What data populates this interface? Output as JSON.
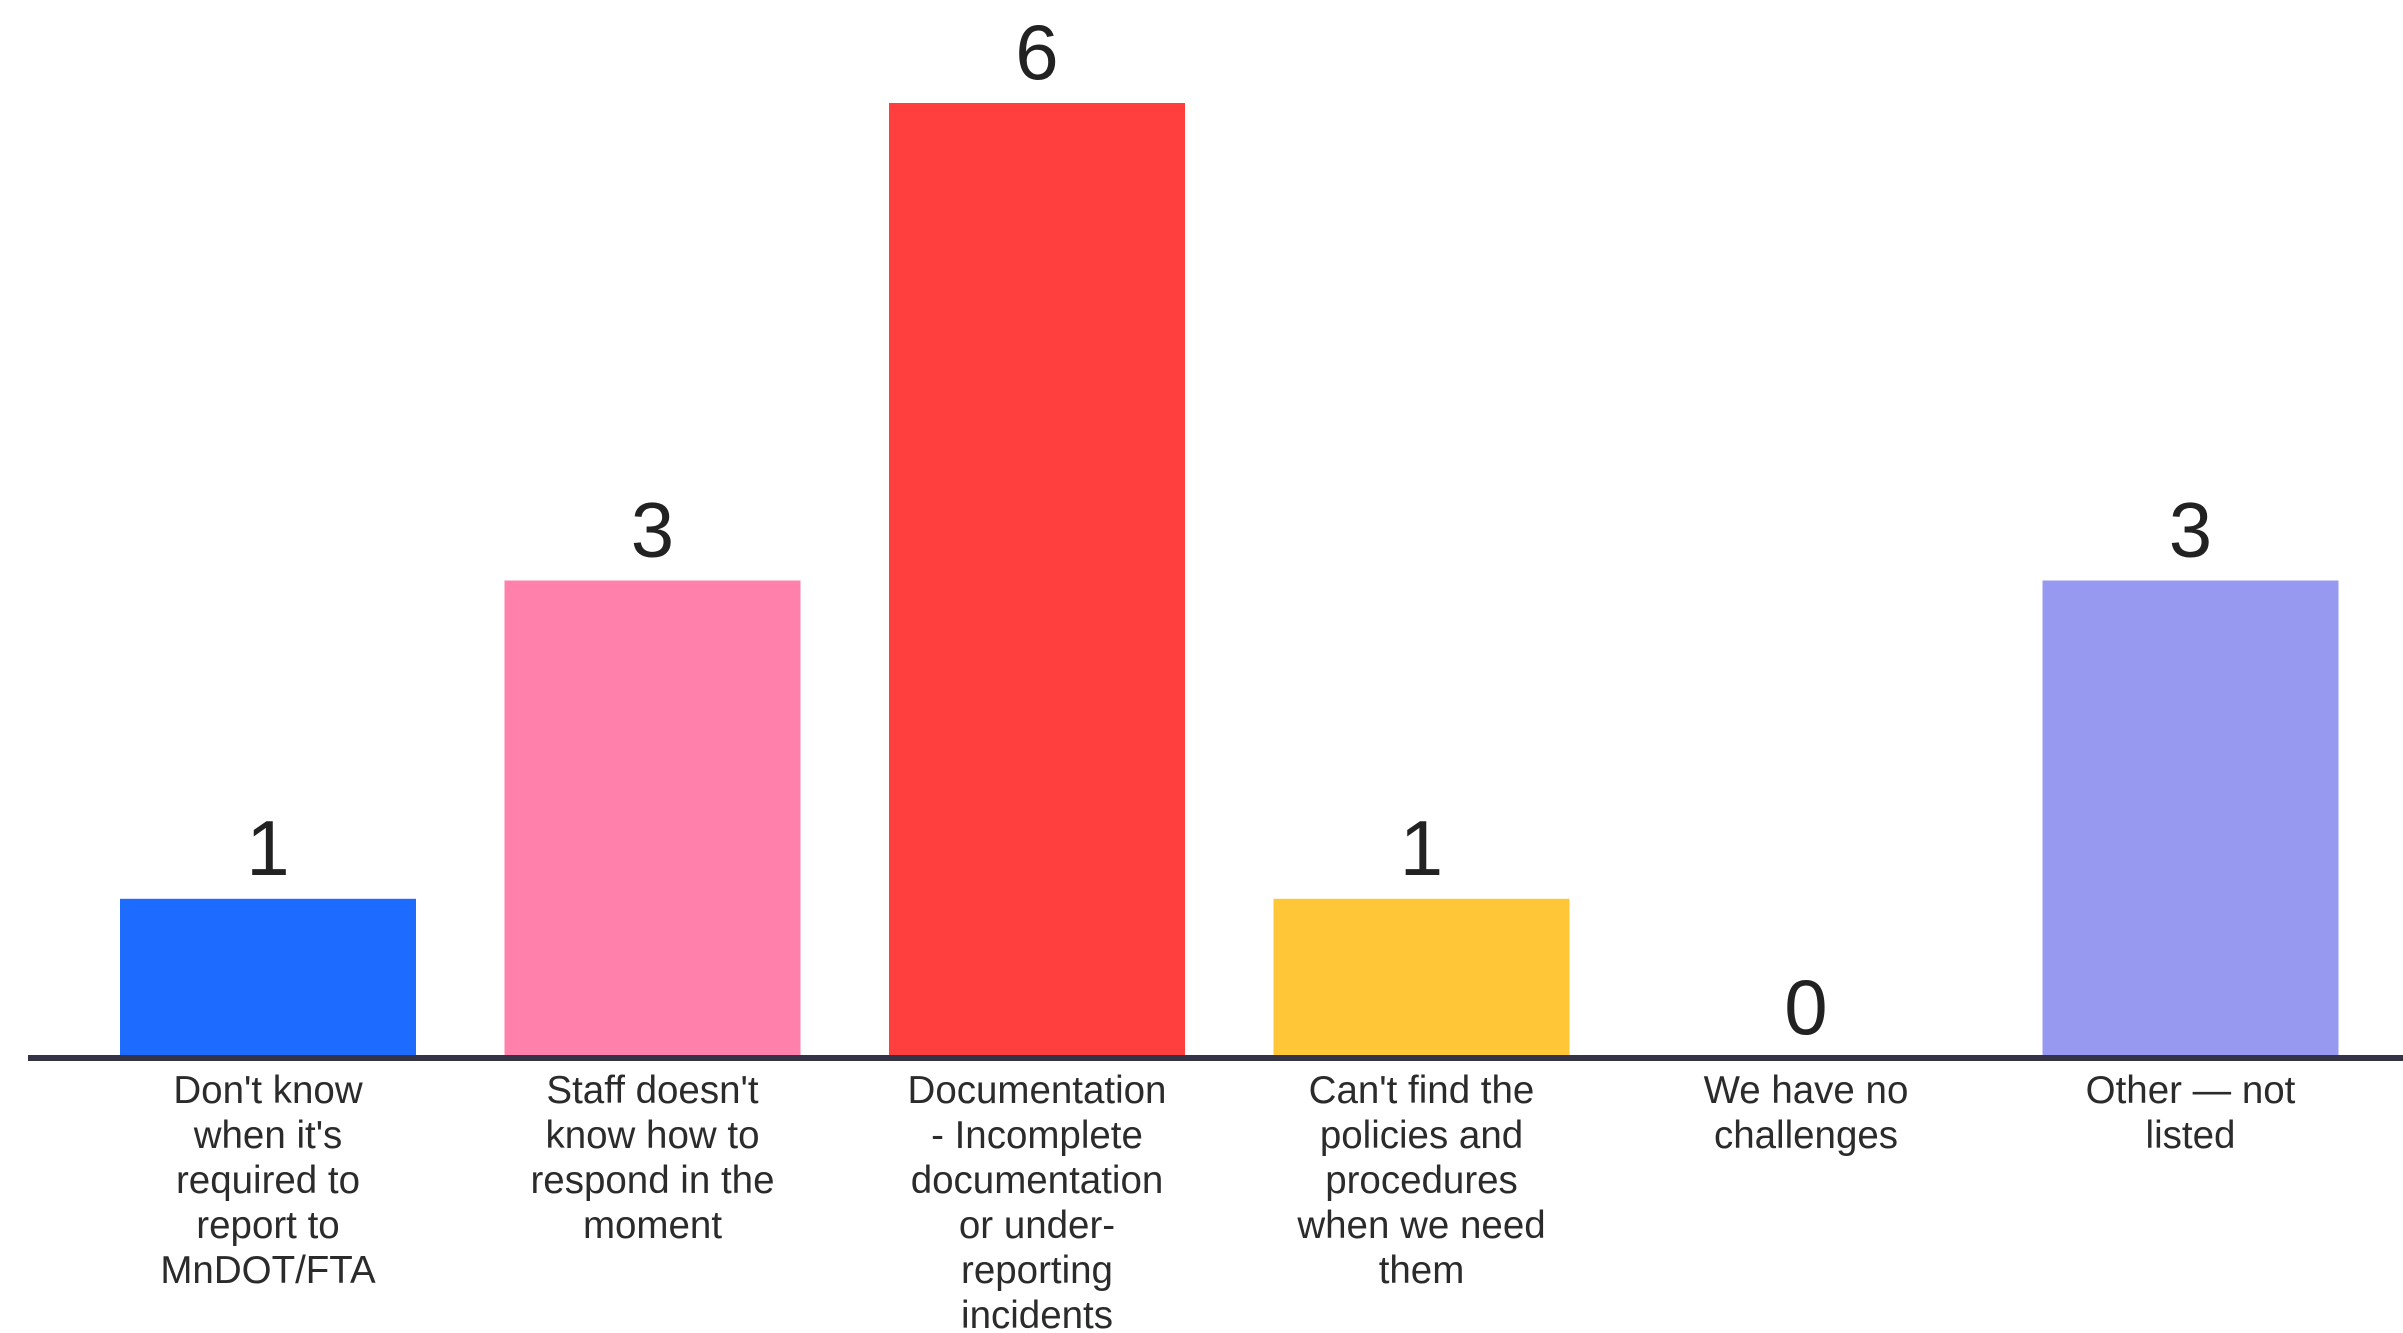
{
  "chart_data": {
    "type": "bar",
    "categories": [
      [
        "Don't know",
        "when it's",
        "required to",
        "report to",
        "MnDOT/FTA"
      ],
      [
        "Staff doesn't",
        "know how to",
        "respond in the",
        "moment"
      ],
      [
        "Documentation",
        "- Incomplete",
        "documentation",
        "or under-",
        "reporting",
        "incidents"
      ],
      [
        "Can't find the",
        "policies and",
        "procedures",
        "when we need",
        "them"
      ],
      [
        "We have no",
        "challenges"
      ],
      [
        "Other — not",
        "listed"
      ]
    ],
    "values": [
      1,
      3,
      6,
      1,
      0,
      3
    ],
    "value_labels": [
      "1",
      "3",
      "6",
      "1",
      "0",
      "3"
    ],
    "colors": [
      "#1e6cff",
      "#ff80aa",
      "#ff3e3d",
      "#ffc638",
      "#ffffff",
      "#9799f1"
    ],
    "baseline_color": "#333345",
    "ylim": [
      0,
      6
    ],
    "grid": false
  }
}
